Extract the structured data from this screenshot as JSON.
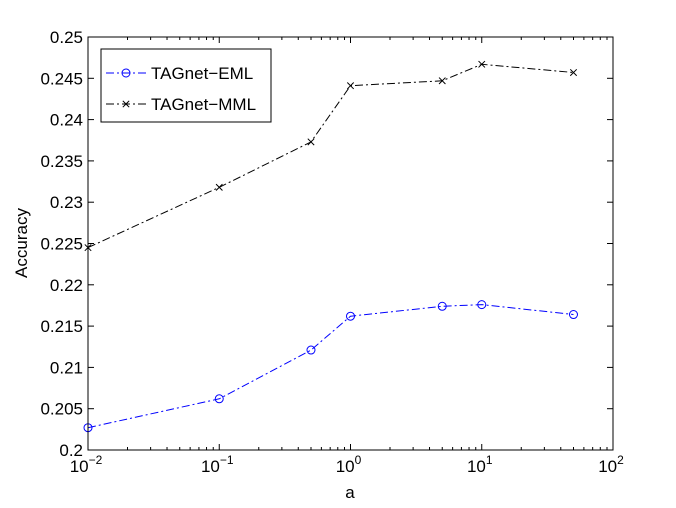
{
  "chart_data": {
    "type": "line",
    "title": "",
    "xlabel": "a",
    "ylabel": "Accuracy",
    "xscale": "log",
    "xlim": [
      0.01,
      100
    ],
    "ylim": [
      0.2,
      0.25
    ],
    "grid": false,
    "legend_position": "top-left",
    "x_ticks": [
      {
        "value": 0.01,
        "base": "10",
        "exp": "−2"
      },
      {
        "value": 0.1,
        "base": "10",
        "exp": "−1"
      },
      {
        "value": 1,
        "base": "10",
        "exp": "0"
      },
      {
        "value": 10,
        "base": "10",
        "exp": "1"
      },
      {
        "value": 100,
        "base": "10",
        "exp": "2"
      }
    ],
    "y_ticks": [
      "0.2",
      "0.205",
      "0.21",
      "0.215",
      "0.22",
      "0.225",
      "0.23",
      "0.235",
      "0.24",
      "0.245",
      "0.25"
    ],
    "x": [
      0.01,
      0.1,
      0.5,
      1,
      5,
      10,
      50
    ],
    "series": [
      {
        "name": "TAGnet−EML",
        "color": "#0000ff",
        "marker": "circle",
        "line_style": "dash-dot",
        "values": [
          0.2027,
          0.2062,
          0.2121,
          0.2162,
          0.2174,
          0.2176,
          0.2164
        ]
      },
      {
        "name": "TAGnet−MML",
        "color": "#000000",
        "marker": "x",
        "line_style": "dash-dot",
        "values": [
          0.2245,
          0.2318,
          0.2373,
          0.2441,
          0.2447,
          0.2467,
          0.2457
        ]
      }
    ]
  }
}
